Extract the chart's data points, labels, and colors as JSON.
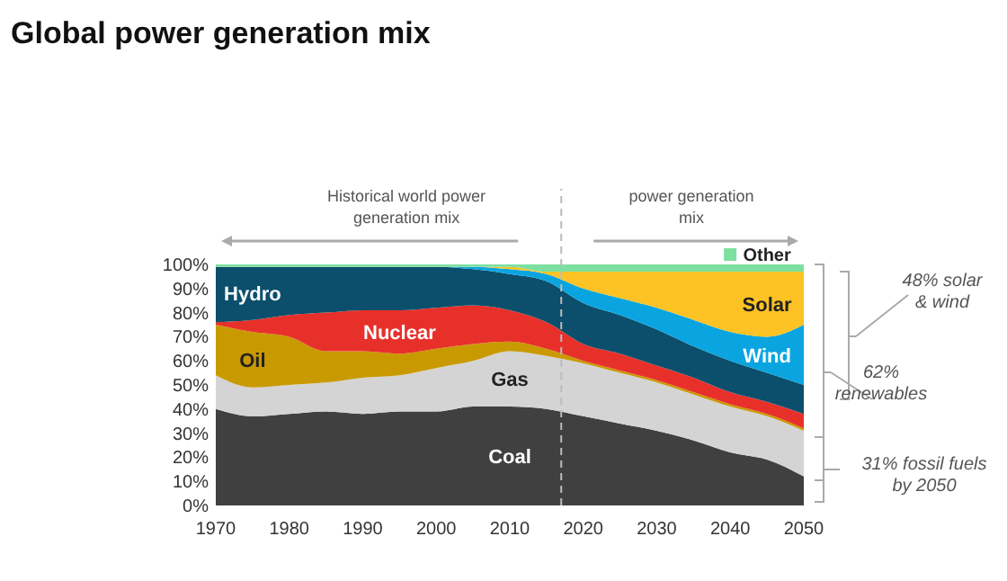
{
  "chart_data": {
    "type": "area",
    "stacked": true,
    "title": "Global power generation mix",
    "x": [
      1970,
      1975,
      1980,
      1985,
      1990,
      1995,
      2000,
      2005,
      2010,
      2015,
      2020,
      2025,
      2030,
      2035,
      2040,
      2045,
      2050
    ],
    "series": [
      {
        "name": "Coal",
        "color": "#404040",
        "values": [
          40,
          37,
          38,
          39,
          38,
          39,
          39,
          41,
          41,
          40,
          37,
          34,
          31,
          27,
          22,
          19,
          12
        ]
      },
      {
        "name": "Gas",
        "color": "#d4d4d4",
        "values": [
          14,
          12,
          12,
          12,
          15,
          15,
          18,
          19,
          23,
          22,
          22,
          21,
          20,
          19,
          19,
          18,
          19
        ]
      },
      {
        "name": "Oil",
        "color": "#c99a00",
        "values": [
          21,
          23,
          20,
          13,
          11,
          9,
          8,
          7,
          4,
          3,
          1,
          1,
          1,
          1,
          1,
          1,
          1
        ]
      },
      {
        "name": "Nuclear",
        "color": "#e8302a",
        "values": [
          1,
          5,
          9,
          16,
          17,
          18,
          17,
          16,
          13,
          11,
          7,
          7,
          6,
          6,
          5,
          5,
          6
        ]
      },
      {
        "name": "Hydro",
        "color": "#0b4f6c",
        "values": [
          23,
          22,
          20,
          19,
          18,
          18,
          17,
          15,
          15,
          17,
          17,
          16,
          15,
          13,
          13,
          12,
          12
        ]
      },
      {
        "name": "Wind",
        "color": "#0aa5e0",
        "values": [
          0,
          0,
          0,
          0,
          0,
          0,
          0,
          1,
          2,
          3,
          6,
          7,
          9,
          11,
          12,
          15,
          25
        ]
      },
      {
        "name": "Solar",
        "color": "#fdc324",
        "values": [
          0,
          0,
          0,
          0,
          0,
          0,
          0,
          0,
          1,
          1,
          7,
          11,
          15,
          20,
          25,
          27,
          22
        ]
      },
      {
        "name": "Other",
        "color": "#7ddfa0",
        "values": [
          1,
          1,
          1,
          1,
          1,
          1,
          1,
          1,
          1,
          3,
          3,
          3,
          3,
          3,
          3,
          3,
          3
        ]
      }
    ],
    "xlim": [
      1970,
      2050
    ],
    "xticks": [
      1970,
      1980,
      1990,
      2000,
      2010,
      2020,
      2030,
      2040,
      2050
    ],
    "ylim": [
      0,
      100
    ],
    "yticks": [
      {
        "value": 0,
        "label": "0%"
      },
      {
        "value": 10,
        "label": "10%"
      },
      {
        "value": 20,
        "label": "20%"
      },
      {
        "value": 30,
        "label": "30%"
      },
      {
        "value": 40,
        "label": "40%"
      },
      {
        "value": 50,
        "label": "50%"
      },
      {
        "value": 60,
        "label": "60%"
      },
      {
        "value": 70,
        "label": "70%"
      },
      {
        "value": 80,
        "label": "80%"
      },
      {
        "value": 90,
        "label": "90%"
      },
      {
        "value": 100,
        "label": "100%"
      }
    ],
    "ref_lines": [
      {
        "axis": "x",
        "value": 2017,
        "color": "#bbbbbb",
        "line_style": "dashed"
      }
    ],
    "annotations": [
      "Historical world power generation mix",
      "power generation mix",
      "48% solar & wind",
      "62% renewables",
      "31% fossil fuels by 2050"
    ],
    "grid": false
  }
}
